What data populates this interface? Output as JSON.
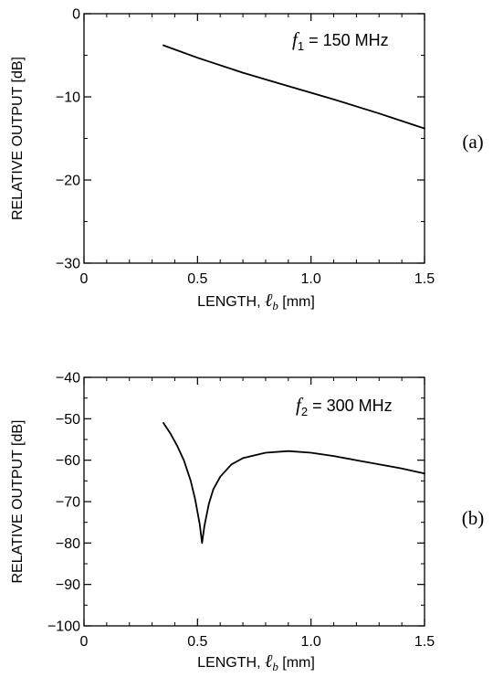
{
  "chart_data": [
    {
      "type": "line",
      "panel_label": "(a)",
      "xlabel": "LENGTH, ℓb [mm]",
      "xlabel_parts": {
        "prefix": "LENGTH, ",
        "symbol": "ℓ",
        "subscript": "b",
        "suffix": " [mm]"
      },
      "ylabel": "RELATIVE OUTPUT [dB]",
      "xlim": [
        0,
        1.5
      ],
      "ylim": [
        -30,
        0
      ],
      "x_ticks": [
        0,
        0.5,
        1.0,
        1.5
      ],
      "x_tick_labels": [
        "0",
        "0.5",
        "1.0",
        "1.5"
      ],
      "y_ticks": [
        0,
        -10,
        -20,
        -30
      ],
      "y_tick_labels": [
        "0",
        "−10",
        "−20",
        "−30"
      ],
      "annotation": {
        "symbol": "f",
        "subscript": "1",
        "text": " = 150 MHz"
      },
      "grid": false,
      "series": [
        {
          "x": [
            0.35,
            0.5,
            0.7,
            0.9,
            1.1,
            1.3,
            1.5
          ],
          "y": [
            -3.8,
            -5.3,
            -7.1,
            -8.7,
            -10.3,
            -12.0,
            -13.8
          ]
        }
      ]
    },
    {
      "type": "line",
      "panel_label": "(b)",
      "xlabel": "LENGTH, ℓb [mm]",
      "xlabel_parts": {
        "prefix": "LENGTH, ",
        "symbol": "ℓ",
        "subscript": "b",
        "suffix": " [mm]"
      },
      "ylabel": "RELATIVE OUTPUT [dB]",
      "xlim": [
        0,
        1.5
      ],
      "ylim": [
        -100,
        -40
      ],
      "x_ticks": [
        0,
        0.5,
        1.0,
        1.5
      ],
      "x_tick_labels": [
        "0",
        "0.5",
        "1.0",
        "1.5"
      ],
      "y_ticks": [
        -40,
        -50,
        -60,
        -70,
        -80,
        -90,
        -100
      ],
      "y_tick_labels": [
        "−40",
        "−50",
        "−60",
        "−70",
        "−80",
        "−90",
        "−100"
      ],
      "annotation": {
        "symbol": "f",
        "subscript": "2",
        "text": " = 300 MHz"
      },
      "grid": false,
      "series": [
        {
          "x": [
            0.35,
            0.38,
            0.41,
            0.44,
            0.47,
            0.49,
            0.51,
            0.52,
            0.53,
            0.55,
            0.57,
            0.6,
            0.65,
            0.7,
            0.8,
            0.9,
            1.0,
            1.1,
            1.2,
            1.3,
            1.4,
            1.5
          ],
          "y": [
            -51,
            -53.5,
            -56.5,
            -60,
            -65,
            -69.5,
            -75.5,
            -80,
            -76,
            -70.5,
            -67,
            -64,
            -61,
            -59.5,
            -58.2,
            -57.8,
            -58.2,
            -59,
            -60,
            -61,
            -62,
            -63.2
          ]
        }
      ]
    }
  ]
}
